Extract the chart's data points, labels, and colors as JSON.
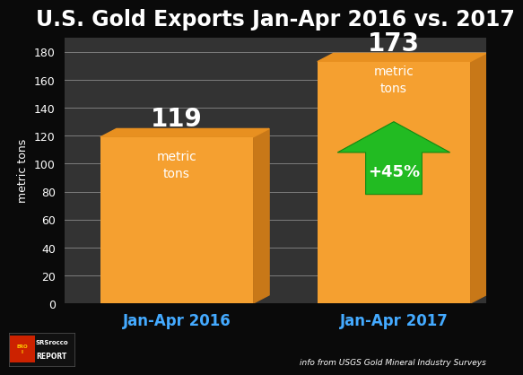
{
  "title": "U.S. Gold Exports Jan-Apr 2016 vs. 2017",
  "categories": [
    "Jan-Apr 2016",
    "Jan-Apr 2017"
  ],
  "values": [
    119,
    173
  ],
  "bar_color": "#F5A030",
  "bar_color_dark": "#C87818",
  "bar_color_top": "#E89020",
  "background_color": "#0a0a0a",
  "plot_bg_color": "#333333",
  "left_wall_color": "#2a2a2a",
  "grid_color": "#888888",
  "ylabel": "metric tons",
  "ylim": [
    0,
    190
  ],
  "yticks": [
    0,
    20,
    40,
    60,
    80,
    100,
    120,
    140,
    160,
    180
  ],
  "title_color": "#ffffff",
  "title_fontsize": 17,
  "tick_color": "#ffffff",
  "xlabel_color": "#44aaff",
  "arrow_color": "#22bb22",
  "pct_label": "+45%",
  "footer_right": "info from USGS Gold Mineral Industry Surveys"
}
